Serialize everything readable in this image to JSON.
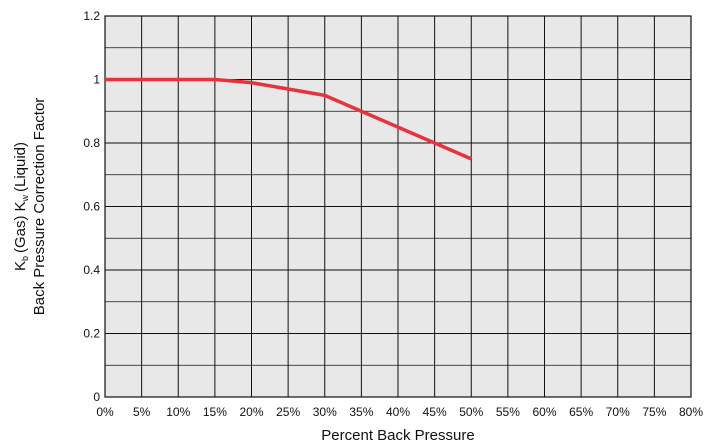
{
  "chart_data": {
    "type": "line",
    "xlabel": "Percent Back Pressure",
    "ylabel_line1": {
      "k1": "K",
      "k1_sub": "b",
      "gas": "(Gas)",
      "k2": "K",
      "k2_sub": "w",
      "liquid": "(Liquid)"
    },
    "ylabel_line2": "Back Pressure Correction Factor",
    "xlim": [
      0,
      80
    ],
    "ylim": [
      0,
      1.2
    ],
    "x_ticks": [
      0,
      5,
      10,
      15,
      20,
      25,
      30,
      35,
      40,
      45,
      50,
      55,
      60,
      65,
      70,
      75,
      80
    ],
    "x_tick_labels": [
      "0%",
      "5%",
      "10%",
      "15%",
      "20%",
      "25%",
      "30%",
      "35%",
      "40%",
      "45%",
      "50%",
      "55%",
      "60%",
      "65%",
      "70%",
      "75%",
      "80%"
    ],
    "y_ticks": [
      0,
      0.2,
      0.4,
      0.6,
      0.8,
      1,
      1.2
    ],
    "y_tick_labels": [
      "0",
      "0.2",
      "0.4",
      "0.6",
      "0.8",
      "1",
      "1.2"
    ],
    "y_minor_ticks": [
      0.1,
      0.3,
      0.5,
      0.7,
      0.9,
      1.1
    ],
    "grid": true,
    "colors": {
      "plot_bg": "#e8e8e8",
      "grid": "#111111",
      "line": "#e8333c"
    },
    "series": [
      {
        "x": [
          0,
          15,
          20,
          25,
          30,
          35,
          40,
          45,
          50
        ],
        "y": [
          1,
          1,
          0.99,
          0.97,
          0.95,
          0.9,
          0.85,
          0.8,
          0.75
        ]
      }
    ]
  }
}
